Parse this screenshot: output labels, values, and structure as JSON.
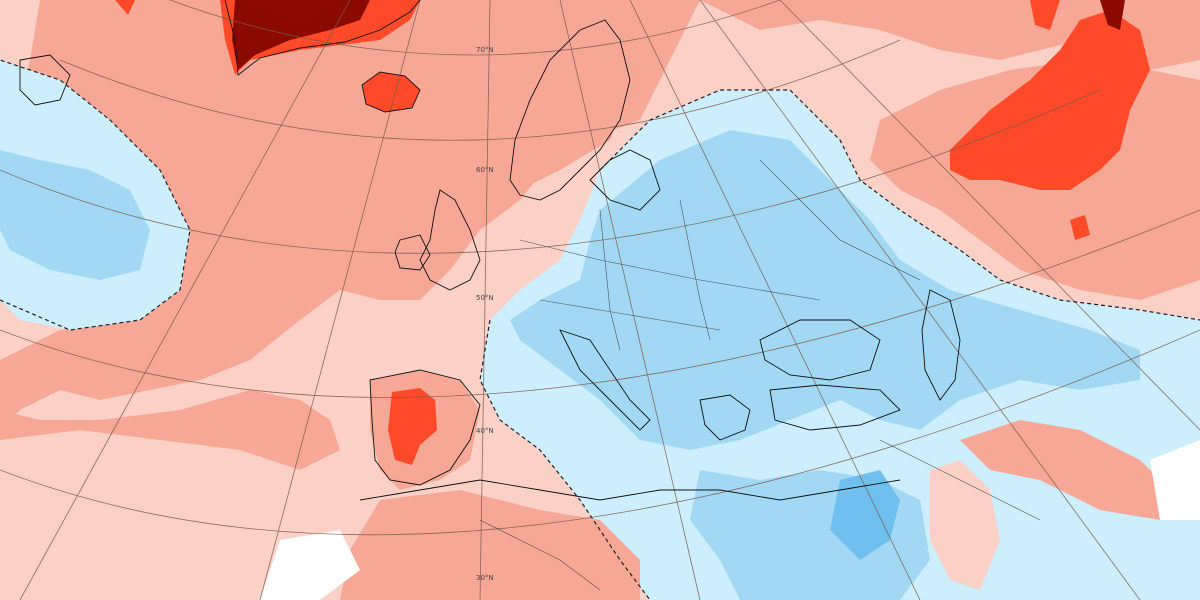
{
  "map": {
    "latitude_labels": [
      "70°N",
      "60°N",
      "50°N",
      "40°N",
      "30°N"
    ],
    "legend": null,
    "colors": {
      "warm_strong": "#8b0a00",
      "warm_high": "#ff4a2a",
      "warm_mid": "#f6a796",
      "warm_low": "#fbd0c6",
      "neutral": "#ffffff",
      "cold_low": "#cdeefd",
      "cold_mid": "#a3d8f5",
      "cold_high": "#6fc0ef",
      "coastline": "#111111",
      "graticule": "#7a5a4a",
      "zero_contour": "#222222"
    },
    "regions": [
      {
        "name": "atlantic-warm-anomaly",
        "class": "warm_mid"
      },
      {
        "name": "greenland-strong-warm",
        "class": "warm_strong"
      },
      {
        "name": "iceland-warm",
        "class": "warm_high"
      },
      {
        "name": "iberia-warm",
        "class": "warm_high"
      },
      {
        "name": "russia-warm",
        "class": "warm_high"
      },
      {
        "name": "europe-cold-anomaly",
        "class": "cold_mid"
      },
      {
        "name": "mediterranean-cold",
        "class": "cold_low"
      },
      {
        "name": "west-atlantic-cold",
        "class": "cold_mid"
      }
    ]
  }
}
